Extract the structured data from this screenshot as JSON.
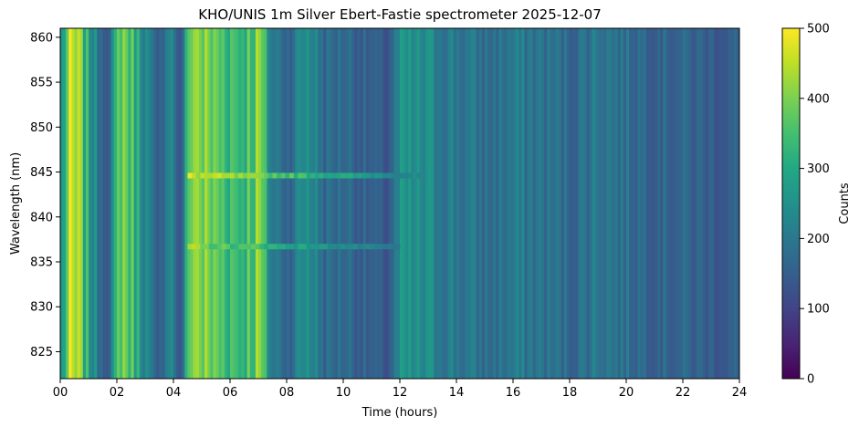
{
  "chart_data": {
    "type": "heatmap",
    "title": "KHO/UNIS 1m Silver Ebert-Fastie spectrometer 2025-12-07",
    "xlabel": "Time (hours)",
    "ylabel": "Wavelength (nm)",
    "colorbar_label": "Counts",
    "colormap": "viridis",
    "xlim": [
      0,
      24
    ],
    "ylim": [
      822,
      861
    ],
    "clim": [
      0,
      500
    ],
    "x_ticks": [
      0,
      2,
      4,
      6,
      8,
      10,
      12,
      14,
      16,
      18,
      20,
      22,
      24
    ],
    "x_tick_labels": [
      "00",
      "02",
      "04",
      "06",
      "08",
      "10",
      "12",
      "14",
      "16",
      "18",
      "20",
      "22",
      "24"
    ],
    "y_ticks": [
      825,
      830,
      835,
      840,
      845,
      850,
      855,
      860
    ],
    "y_tick_labels": [
      "825",
      "830",
      "835",
      "840",
      "845",
      "850",
      "855",
      "860"
    ],
    "colorbar_ticks": [
      0,
      100,
      200,
      300,
      400,
      500
    ],
    "colorbar_tick_labels": [
      "0",
      "100",
      "200",
      "300",
      "400",
      "500"
    ],
    "time_profile_counts": [
      {
        "t": 0.0,
        "counts": 260
      },
      {
        "t": 0.3,
        "counts": 430
      },
      {
        "t": 0.6,
        "counts": 400
      },
      {
        "t": 0.9,
        "counts": 300
      },
      {
        "t": 1.3,
        "counts": 200
      },
      {
        "t": 1.7,
        "counts": 150
      },
      {
        "t": 2.1,
        "counts": 420
      },
      {
        "t": 2.6,
        "counts": 320
      },
      {
        "t": 3.0,
        "counts": 230
      },
      {
        "t": 3.4,
        "counts": 120
      },
      {
        "t": 3.8,
        "counts": 260
      },
      {
        "t": 4.2,
        "counts": 120
      },
      {
        "t": 4.6,
        "counts": 440
      },
      {
        "t": 5.2,
        "counts": 380
      },
      {
        "t": 5.8,
        "counts": 360
      },
      {
        "t": 6.4,
        "counts": 340
      },
      {
        "t": 7.0,
        "counts": 400
      },
      {
        "t": 7.4,
        "counts": 210
      },
      {
        "t": 8.0,
        "counts": 170
      },
      {
        "t": 8.7,
        "counts": 260
      },
      {
        "t": 9.3,
        "counts": 170
      },
      {
        "t": 10.0,
        "counts": 180
      },
      {
        "t": 10.8,
        "counts": 150
      },
      {
        "t": 11.5,
        "counts": 130
      },
      {
        "t": 12.0,
        "counts": 240
      },
      {
        "t": 13.0,
        "counts": 230
      },
      {
        "t": 14.0,
        "counts": 200
      },
      {
        "t": 15.0,
        "counts": 180
      },
      {
        "t": 16.0,
        "counts": 200
      },
      {
        "t": 17.0,
        "counts": 190
      },
      {
        "t": 18.0,
        "counts": 170
      },
      {
        "t": 19.0,
        "counts": 210
      },
      {
        "t": 20.0,
        "counts": 180
      },
      {
        "t": 21.0,
        "counts": 170
      },
      {
        "t": 22.0,
        "counts": 160
      },
      {
        "t": 23.0,
        "counts": 150
      },
      {
        "t": 24.0,
        "counts": 150
      }
    ],
    "emission_lines": [
      {
        "wavelength": 844.6,
        "peak_counts": 480,
        "start": 4.5,
        "end": 12.8
      },
      {
        "wavelength": 836.7,
        "peak_counts": 420,
        "start": 4.5,
        "end": 12.0
      }
    ]
  }
}
